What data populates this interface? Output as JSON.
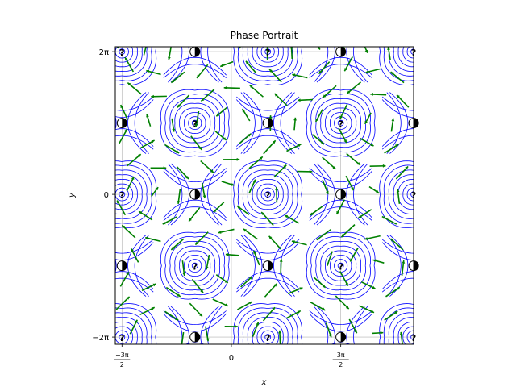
{
  "chart_data": {
    "type": "streamplot",
    "title": "Phase Portrait",
    "xlabel": "x",
    "ylabel": "y",
    "xlim": [
      -5.0,
      7.85
    ],
    "ylim": [
      -6.6,
      6.5
    ],
    "grid": true,
    "streamline_color": "#0000ff",
    "arrow_color": "#008000",
    "field": {
      "dx": "sin(y)",
      "dy": "sin(x)"
    },
    "x_ticks": [
      {
        "value": -4.712389,
        "num": "−3π",
        "den": "2"
      },
      {
        "value": 0,
        "label": "0"
      },
      {
        "value": 4.712389,
        "num": "3π",
        "den": "2"
      }
    ],
    "y_ticks": [
      {
        "value": 6.283185,
        "label": "2π"
      },
      {
        "value": 0,
        "label": "0"
      },
      {
        "value": -6.283185,
        "label": "−2π"
      }
    ],
    "equilibria": [
      {
        "x": -4.712,
        "y": 6.283,
        "kind": "center"
      },
      {
        "x": -1.571,
        "y": 6.283,
        "kind": "saddle"
      },
      {
        "x": 1.571,
        "y": 6.283,
        "kind": "center"
      },
      {
        "x": 4.712,
        "y": 6.283,
        "kind": "saddle"
      },
      {
        "x": 7.854,
        "y": 6.283,
        "kind": "center"
      },
      {
        "x": -4.712,
        "y": 3.142,
        "kind": "saddle"
      },
      {
        "x": -1.571,
        "y": 3.142,
        "kind": "center"
      },
      {
        "x": 1.571,
        "y": 3.142,
        "kind": "saddle"
      },
      {
        "x": 4.712,
        "y": 3.142,
        "kind": "center"
      },
      {
        "x": 7.854,
        "y": 3.142,
        "kind": "saddle"
      },
      {
        "x": -4.712,
        "y": 0,
        "kind": "center"
      },
      {
        "x": -1.571,
        "y": 0,
        "kind": "saddle"
      },
      {
        "x": 1.571,
        "y": 0,
        "kind": "center"
      },
      {
        "x": 4.712,
        "y": 0,
        "kind": "saddle"
      },
      {
        "x": 7.854,
        "y": 0,
        "kind": "center"
      },
      {
        "x": -4.712,
        "y": -3.142,
        "kind": "saddle"
      },
      {
        "x": -1.571,
        "y": -3.142,
        "kind": "center"
      },
      {
        "x": 1.571,
        "y": -3.142,
        "kind": "saddle"
      },
      {
        "x": 4.712,
        "y": -3.142,
        "kind": "center"
      },
      {
        "x": 7.854,
        "y": -3.142,
        "kind": "saddle"
      },
      {
        "x": -4.712,
        "y": -6.283,
        "kind": "center"
      },
      {
        "x": -1.571,
        "y": -6.283,
        "kind": "saddle"
      },
      {
        "x": 1.571,
        "y": -6.283,
        "kind": "center"
      },
      {
        "x": 4.712,
        "y": -6.283,
        "kind": "saddle"
      },
      {
        "x": 7.854,
        "y": -6.283,
        "kind": "center"
      }
    ],
    "equilibrium_markers": {
      "center": "?",
      "saddle": "half-filled circle"
    }
  }
}
